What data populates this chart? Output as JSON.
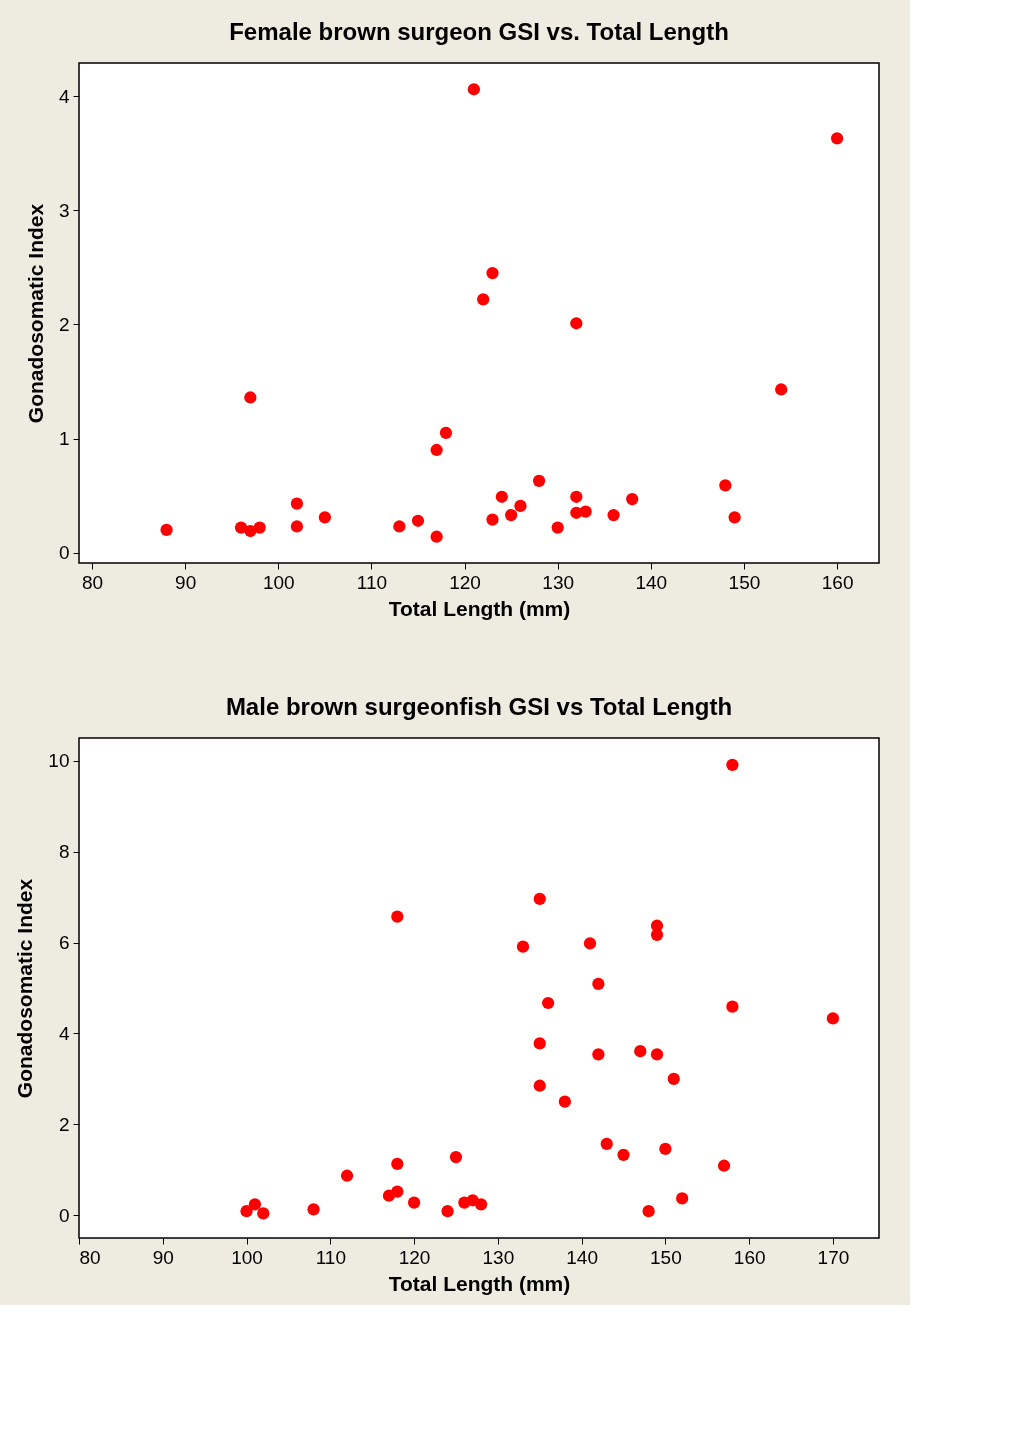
{
  "chart_data": [
    {
      "type": "scatter",
      "title": "Female brown surgeon GSI vs. Total Length",
      "xlabel": "Total Length (mm)",
      "ylabel": "Gonadosomatic Index",
      "xlim": [
        78.6,
        164.5
      ],
      "ylim": [
        -0.09,
        4.29
      ],
      "xticks": [
        80,
        90,
        100,
        110,
        120,
        130,
        140,
        150,
        160
      ],
      "yticks": [
        0,
        1,
        2,
        3,
        4
      ],
      "grid": false,
      "marker": "circle",
      "series": [
        {
          "color": "#ff0000",
          "x": [
            88,
            96,
            97,
            98,
            97,
            102,
            102,
            105,
            113,
            115,
            117,
            117,
            118,
            121,
            122,
            123,
            123,
            124,
            125,
            126,
            128,
            130,
            132,
            132,
            132,
            133,
            136,
            138,
            148,
            149,
            154,
            160
          ],
          "values": [
            0.2,
            0.22,
            0.19,
            0.22,
            1.36,
            0.43,
            0.23,
            0.31,
            0.23,
            0.28,
            0.14,
            0.9,
            1.05,
            4.06,
            2.22,
            2.45,
            0.29,
            0.49,
            0.33,
            0.41,
            0.63,
            0.22,
            2.01,
            0.49,
            0.35,
            0.36,
            0.33,
            0.47,
            0.59,
            0.31,
            1.43,
            3.63
          ]
        }
      ]
    },
    {
      "type": "scatter",
      "title": "Male brown surgeonfish GSI vs Total Length",
      "xlabel": "Total Length (mm)",
      "ylabel": "Gonadosomatic Index",
      "xlim": [
        80,
        175.5
      ],
      "ylim": [
        -0.5,
        10.5
      ],
      "xticks": [
        80,
        90,
        100,
        110,
        120,
        130,
        140,
        150,
        160,
        170
      ],
      "yticks": [
        0,
        2,
        4,
        6,
        8,
        10
      ],
      "grid": false,
      "marker": "circle",
      "series": [
        {
          "color": "#ff0000",
          "x": [
            100,
            101,
            102,
            108,
            112,
            117,
            118,
            118,
            118,
            120,
            124,
            125,
            126,
            127,
            128,
            133,
            135,
            135,
            135,
            136,
            138,
            141,
            142,
            142,
            143,
            145,
            147,
            148,
            149,
            149,
            149,
            150,
            151,
            152,
            157,
            158,
            158,
            170
          ],
          "values": [
            0.09,
            0.24,
            0.04,
            0.13,
            0.87,
            0.43,
            0.52,
            1.13,
            6.57,
            0.28,
            0.09,
            1.28,
            0.28,
            0.33,
            0.24,
            5.91,
            6.96,
            3.78,
            2.85,
            4.67,
            2.5,
            5.98,
            5.09,
            3.54,
            1.57,
            1.33,
            3.61,
            0.09,
            6.37,
            6.17,
            3.54,
            1.46,
            3.0,
            0.37,
            1.09,
            9.91,
            4.59,
            4.33
          ]
        }
      ]
    }
  ]
}
